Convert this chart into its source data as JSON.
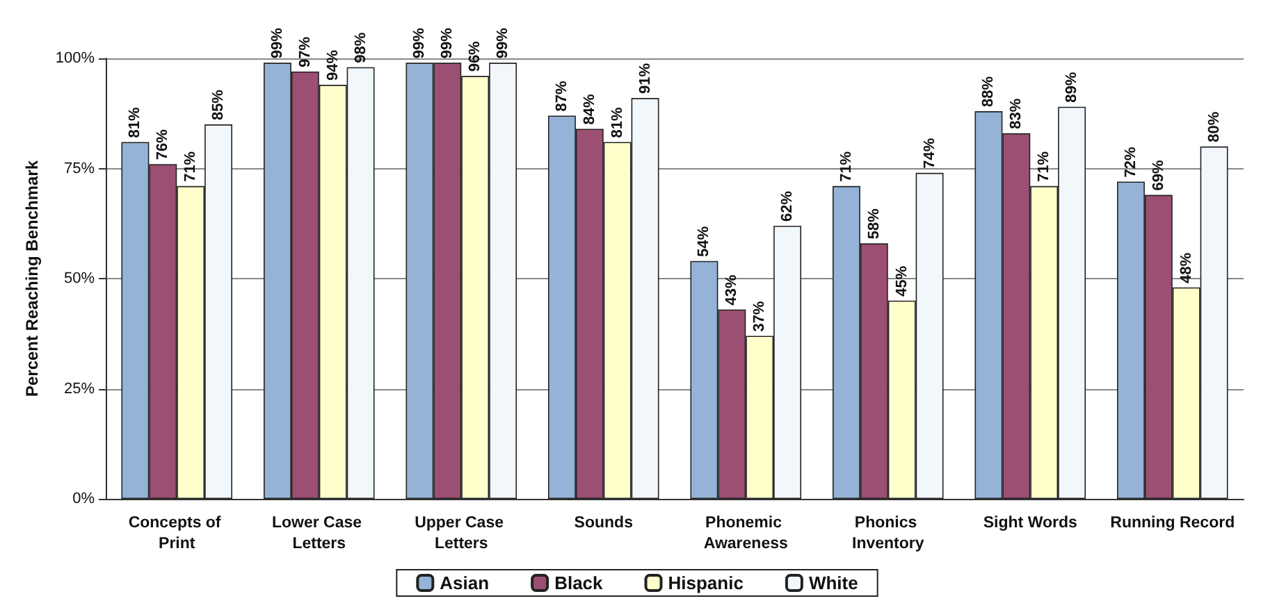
{
  "chart_data": {
    "type": "bar",
    "ylabel": "Percent Reaching Benchmark",
    "categories": [
      "Concepts of Print",
      "Lower Case Letters",
      "Upper Case Letters",
      "Sounds",
      "Phonemic Awareness",
      "Phonics Inventory",
      "Sight Words",
      "Running Record"
    ],
    "series": [
      {
        "name": "Asian",
        "color": "#95b3d7",
        "values": [
          81,
          99,
          99,
          87,
          54,
          71,
          88,
          72
        ],
        "value_labels": [
          "81%",
          "99%",
          "99%",
          "87%",
          "54%",
          "71%",
          "88%",
          "72%"
        ]
      },
      {
        "name": "Black",
        "color": "#9b4f72",
        "values": [
          76,
          97,
          99,
          84,
          43,
          58,
          83,
          69
        ],
        "value_labels": [
          "76%",
          "97%",
          "99%",
          "84%",
          "43%",
          "58%",
          "83%",
          "69%"
        ]
      },
      {
        "name": "Hispanic",
        "color": "#ffffcc",
        "values": [
          71,
          94,
          96,
          81,
          37,
          45,
          71,
          48
        ],
        "value_labels": [
          "71%",
          "94%",
          "96%",
          "81%",
          "37%",
          "45%",
          "71%",
          "48%"
        ]
      },
      {
        "name": "White",
        "color": "#f2f7fc",
        "values": [
          85,
          98,
          99,
          91,
          62,
          74,
          89,
          80
        ],
        "value_labels": [
          "85%",
          "98%",
          "99%",
          "91%",
          "62%",
          "74%",
          "89%",
          "80%"
        ]
      }
    ],
    "ylim": [
      0,
      100
    ],
    "yticks": [
      {
        "value": 0,
        "label": "0%"
      },
      {
        "value": 25,
        "label": "25%"
      },
      {
        "value": 50,
        "label": "50%"
      },
      {
        "value": 75,
        "label": "75%"
      },
      {
        "value": 100,
        "label": "100%"
      }
    ],
    "grid": "y",
    "legend": "bottom"
  }
}
